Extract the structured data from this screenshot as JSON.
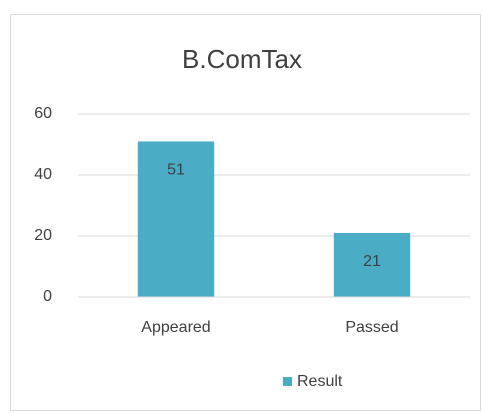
{
  "chart_data": {
    "type": "bar",
    "title": "B.ComTax",
    "categories": [
      "Appeared",
      "Passed"
    ],
    "series": [
      {
        "name": "Result",
        "color": "#4bacc6",
        "values": [
          51,
          21
        ]
      }
    ],
    "ylim": [
      0,
      60
    ],
    "yticks": [
      0,
      20,
      40,
      60
    ],
    "grid": true,
    "legend": "bottom"
  }
}
